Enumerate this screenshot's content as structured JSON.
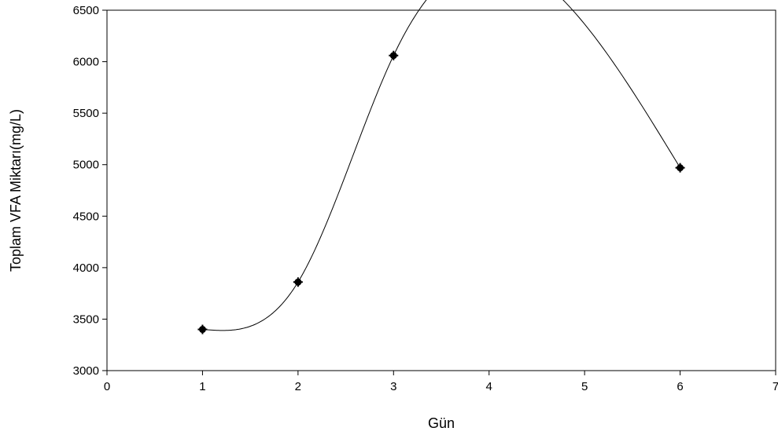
{
  "chart_data": {
    "type": "line",
    "title": "",
    "xlabel": "Gün",
    "ylabel": "Toplam VFA Miktarı(mg/L)",
    "xlim": [
      0,
      7
    ],
    "ylim": [
      3000,
      6500
    ],
    "xticks": [
      0,
      1,
      2,
      3,
      4,
      5,
      6,
      7
    ],
    "yticks": [
      3000,
      3500,
      4000,
      4500,
      5000,
      5500,
      6000,
      6500
    ],
    "grid": false,
    "legend": "none",
    "marker_color": "#000000",
    "line_color": "#000000",
    "series": [
      {
        "x": [
          1,
          2,
          3,
          6
        ],
        "y": [
          3400,
          3860,
          6060,
          4970
        ],
        "smooth": true
      }
    ]
  }
}
